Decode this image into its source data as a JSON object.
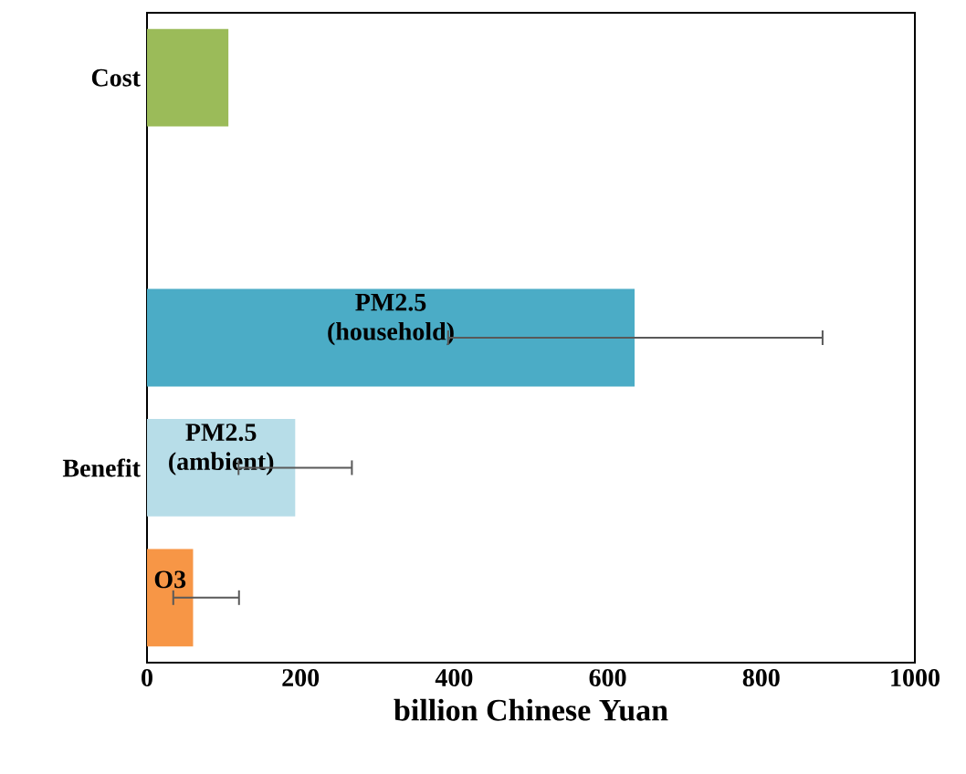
{
  "chart_data": {
    "type": "bar",
    "orientation": "horizontal",
    "categories": [
      "Cost",
      null,
      null,
      "Benefit",
      null
    ],
    "xlabel": "billion Chinese Yuan",
    "xlim": [
      0,
      1000
    ],
    "xticks": [
      0,
      200,
      400,
      600,
      800,
      1000
    ],
    "series": [
      {
        "color": "#9bbb59",
        "values": [
          106,
          null,
          null,
          null,
          null
        ]
      },
      {
        "name": "PM2.5 (household)",
        "color": "#4bacc6",
        "values": [
          null,
          null,
          635,
          null,
          null
        ],
        "errors": [
          null,
          null,
          [
            391,
            881
          ],
          null,
          null
        ]
      },
      {
        "name": "PM2.5 (ambient)",
        "color": "#b7dde8",
        "values": [
          null,
          null,
          null,
          193,
          null
        ],
        "errors": [
          null,
          null,
          null,
          [
            118,
            268
          ],
          null
        ]
      },
      {
        "name": "O3",
        "color": "#f79646",
        "values": [
          null,
          null,
          null,
          null,
          60
        ],
        "errors": [
          null,
          null,
          null,
          null,
          [
            33,
            121
          ]
        ]
      }
    ]
  }
}
